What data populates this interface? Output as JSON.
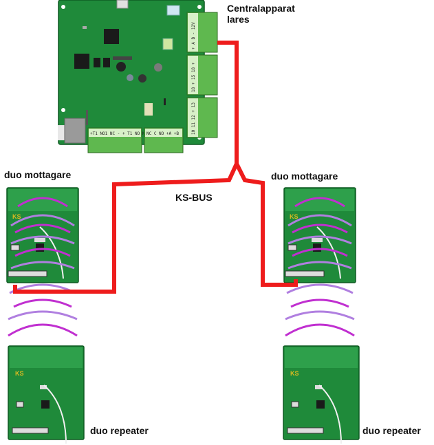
{
  "labels": {
    "central_line1": "Centralapparat",
    "central_line2": "lares",
    "receiver_left": "duo mottagare",
    "receiver_right": "duo mottagare",
    "bus": "KS-BUS",
    "repeater_left": "duo repeater",
    "repeater_right": "duo repeater"
  },
  "board_logo": "KS",
  "terminals": {
    "central_right_top": "+ A B - 12V",
    "central_right_mid": "18 + 15 18 +",
    "central_right_bot": "10 11 12 + 13",
    "central_bottom_left": "+T1 NO1 NC - + T1 NO NC -",
    "central_bottom_right": "NC C NO +A +B"
  },
  "colors": {
    "pcb": "#1f8a3a",
    "bus": "#ee1c1c",
    "wave_strong": "#c02fd0",
    "wave_light": "#b07fe0"
  }
}
